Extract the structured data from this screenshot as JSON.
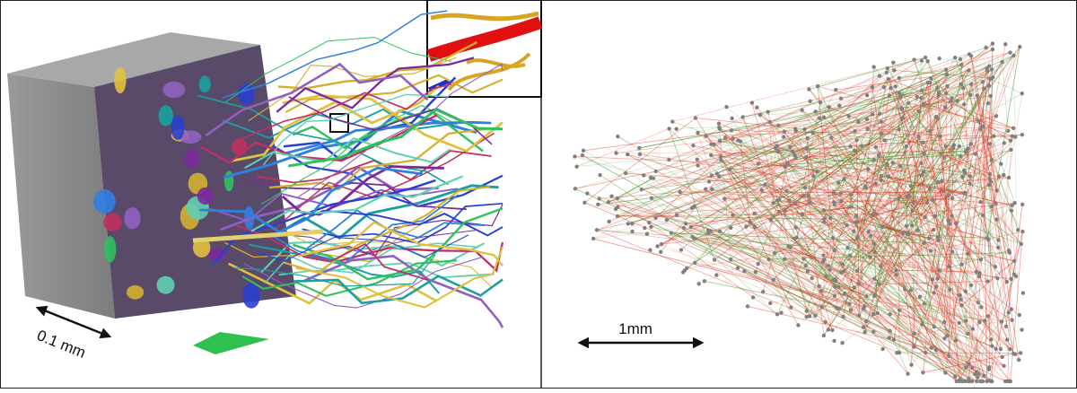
{
  "left_panel": {
    "scale_label": "0.1 mm"
  },
  "right_panel": {
    "scale_label": "1mm"
  }
}
